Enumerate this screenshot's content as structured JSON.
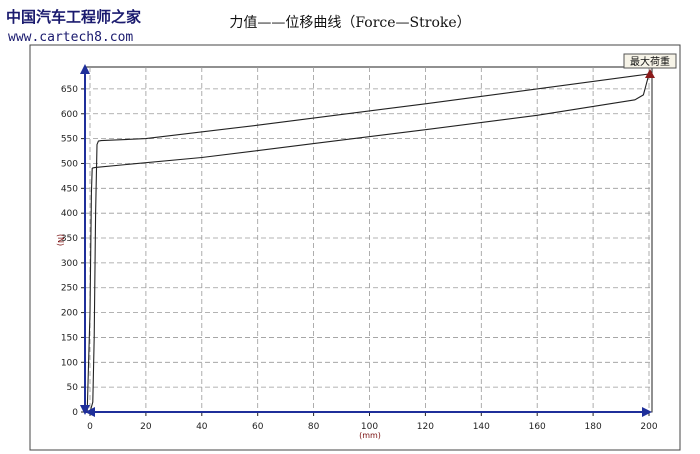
{
  "watermark": {
    "site_name": "中国汽车工程师之家",
    "url": "www.cartech8.com"
  },
  "chart_data": {
    "type": "line",
    "title": "力值——位移曲线（Force—Stroke）",
    "xlabel": "(mm)",
    "ylabel": "(N)",
    "xlim": [
      0,
      200
    ],
    "ylim": [
      0,
      680
    ],
    "x_ticks": [
      0,
      20,
      40,
      60,
      80,
      100,
      120,
      140,
      160,
      180,
      200
    ],
    "y_ticks": [
      0,
      50,
      100,
      150,
      200,
      250,
      300,
      350,
      400,
      450,
      500,
      550,
      600,
      650
    ],
    "grid": true,
    "legend": {
      "label": "最大荷重",
      "position": "top-right"
    },
    "series": [
      {
        "values_description": "loading",
        "x": [
          -1,
          0,
          0.5,
          0.8,
          1,
          2,
          40,
          80,
          120,
          160,
          195,
          198,
          200
        ],
        "y": [
          0,
          200,
          440,
          490,
          491,
          492,
          512,
          540,
          568,
          597,
          628,
          638,
          680
        ]
      },
      {
        "values_description": "unloading",
        "x": [
          200,
          120,
          60,
          20,
          4,
          3,
          2.5,
          2,
          1.5,
          1,
          0
        ],
        "y": [
          680,
          620,
          577,
          550,
          546,
          545,
          538,
          400,
          150,
          20,
          0
        ]
      }
    ],
    "colors": {
      "line": "#222222",
      "axis_marker": "#1f2f9a",
      "max_marker": "#8b1a1a",
      "grid": "#9a9a9a"
    }
  }
}
